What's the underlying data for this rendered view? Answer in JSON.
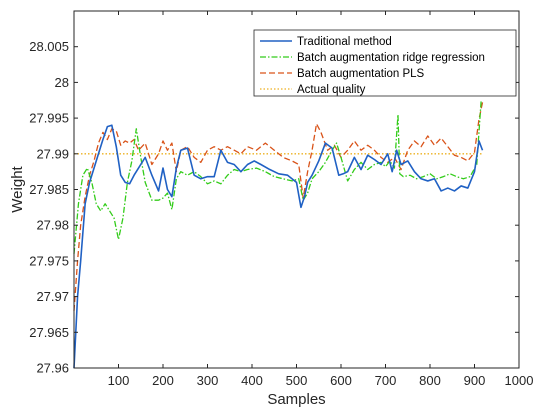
{
  "chart_data": {
    "type": "line",
    "xlabel": "Samples",
    "ylabel": "Weight",
    "xlim": [
      0,
      1000
    ],
    "ylim": [
      27.96,
      28.01
    ],
    "xticks": [
      "100",
      "200",
      "300",
      "400",
      "500",
      "600",
      "700",
      "800",
      "900",
      "1000"
    ],
    "yticks": [
      "27.96",
      "27.965",
      "27.97",
      "27.975",
      "27.98",
      "27.985",
      "27.99",
      "27.995",
      "28",
      "28.005"
    ],
    "grid": false,
    "legend_position": "top-right",
    "series": [
      {
        "name": "Traditional method",
        "color": "#2061c4",
        "style": "solid",
        "x": [
          0,
          8,
          15,
          25,
          35,
          45,
          55,
          65,
          75,
          85,
          95,
          105,
          115,
          125,
          135,
          145,
          160,
          175,
          190,
          200,
          210,
          220,
          230,
          240,
          255,
          270,
          285,
          300,
          315,
          330,
          345,
          360,
          375,
          390,
          405,
          420,
          440,
          460,
          480,
          500,
          510,
          518,
          525,
          535,
          550,
          565,
          580,
          595,
          605,
          615,
          630,
          645,
          660,
          675,
          690,
          705,
          715,
          725,
          735,
          750,
          765,
          780,
          795,
          810,
          825,
          840,
          855,
          870,
          885,
          900,
          910,
          918
        ],
        "y": [
          27.96,
          27.97,
          27.975,
          27.983,
          27.986,
          27.988,
          27.99,
          27.992,
          27.9938,
          27.994,
          27.991,
          27.987,
          27.986,
          27.9858,
          27.987,
          27.988,
          27.9895,
          27.987,
          27.9848,
          27.988,
          27.985,
          27.984,
          27.988,
          27.9905,
          27.9908,
          27.987,
          27.9865,
          27.9868,
          27.9868,
          27.9905,
          27.9888,
          27.9885,
          27.9875,
          27.9885,
          27.989,
          27.9885,
          27.9878,
          27.9872,
          27.987,
          27.986,
          27.9825,
          27.984,
          27.986,
          27.987,
          27.989,
          27.9915,
          27.9908,
          27.987,
          27.9872,
          27.9875,
          27.9895,
          27.9878,
          27.9898,
          27.9892,
          27.9885,
          27.99,
          27.9875,
          27.9905,
          27.9885,
          27.989,
          27.9875,
          27.9865,
          27.9862,
          27.9865,
          27.9848,
          27.9852,
          27.9848,
          27.9855,
          27.9852,
          27.9875,
          27.9918,
          27.9905
        ]
      },
      {
        "name": "Batch augmentation ridge regression",
        "color": "#33cc1a",
        "style": "dashdot",
        "x": [
          0,
          10,
          20,
          30,
          40,
          50,
          60,
          70,
          80,
          90,
          100,
          110,
          120,
          130,
          140,
          150,
          160,
          175,
          190,
          200,
          210,
          220,
          230,
          240,
          255,
          270,
          285,
          300,
          315,
          330,
          345,
          360,
          375,
          390,
          410,
          430,
          450,
          470,
          490,
          505,
          515,
          525,
          535,
          550,
          565,
          580,
          590,
          600,
          615,
          630,
          645,
          660,
          675,
          690,
          700,
          710,
          720,
          728,
          732,
          740,
          755,
          770,
          785,
          800,
          815,
          830,
          845,
          860,
          875,
          890,
          905,
          915
        ],
        "y": [
          27.976,
          27.983,
          27.987,
          27.988,
          27.986,
          27.983,
          27.982,
          27.983,
          27.982,
          27.981,
          27.978,
          27.981,
          27.986,
          27.989,
          27.9935,
          27.9895,
          27.986,
          27.9835,
          27.9835,
          27.9838,
          27.9845,
          27.9822,
          27.9865,
          27.9875,
          27.987,
          27.9875,
          27.9868,
          27.9858,
          27.9862,
          27.9858,
          27.987,
          27.9878,
          27.9875,
          27.9878,
          27.988,
          27.9875,
          27.9868,
          27.9865,
          27.9862,
          27.9865,
          27.9835,
          27.9845,
          27.9865,
          27.9875,
          27.9888,
          27.9905,
          27.9915,
          27.9895,
          27.9862,
          27.9878,
          27.9888,
          27.9878,
          27.9885,
          27.9888,
          27.9882,
          27.989,
          27.988,
          27.9955,
          27.9872,
          27.9868,
          27.987,
          27.9865,
          27.9868,
          27.9872,
          27.9865,
          27.9868,
          27.9872,
          27.9868,
          27.9865,
          27.9868,
          27.9885,
          27.9975
        ]
      },
      {
        "name": "Batch augmentation PLS",
        "color": "#d95319",
        "style": "dashed",
        "x": [
          0,
          8,
          15,
          25,
          35,
          45,
          55,
          65,
          75,
          85,
          95,
          105,
          115,
          125,
          135,
          145,
          160,
          175,
          190,
          200,
          210,
          220,
          230,
          240,
          255,
          270,
          285,
          300,
          315,
          330,
          345,
          360,
          375,
          390,
          410,
          430,
          450,
          470,
          490,
          505,
          515,
          525,
          535,
          545,
          555,
          570,
          585,
          600,
          615,
          630,
          645,
          660,
          675,
          690,
          705,
          720,
          735,
          750,
          765,
          780,
          795,
          810,
          825,
          840,
          855,
          870,
          885,
          900,
          910,
          918
        ],
        "y": [
          27.968,
          27.975,
          27.98,
          27.984,
          27.987,
          27.989,
          27.9915,
          27.993,
          27.992,
          27.9935,
          27.9932,
          27.9912,
          27.9918,
          27.9915,
          27.992,
          27.9905,
          27.9915,
          27.9885,
          27.99,
          27.9918,
          27.9905,
          27.9915,
          27.9875,
          27.9905,
          27.991,
          27.9895,
          27.9888,
          27.9905,
          27.991,
          27.9905,
          27.991,
          27.9905,
          27.99,
          27.991,
          27.9905,
          27.9915,
          27.9905,
          27.9895,
          27.989,
          27.9885,
          27.9838,
          27.9875,
          27.9905,
          27.9942,
          27.993,
          27.9905,
          27.9912,
          27.9895,
          27.9905,
          27.9918,
          27.9905,
          27.9912,
          27.9905,
          27.9895,
          27.9888,
          27.9895,
          27.9878,
          27.9905,
          27.9918,
          27.991,
          27.9925,
          27.9912,
          27.9922,
          27.991,
          27.9898,
          27.9895,
          27.989,
          27.9902,
          27.9948,
          27.9972
        ]
      },
      {
        "name": "Actual quality",
        "color": "#edb120",
        "style": "dotted",
        "x": [
          0,
          920
        ],
        "y": [
          27.99,
          27.99
        ]
      }
    ]
  }
}
